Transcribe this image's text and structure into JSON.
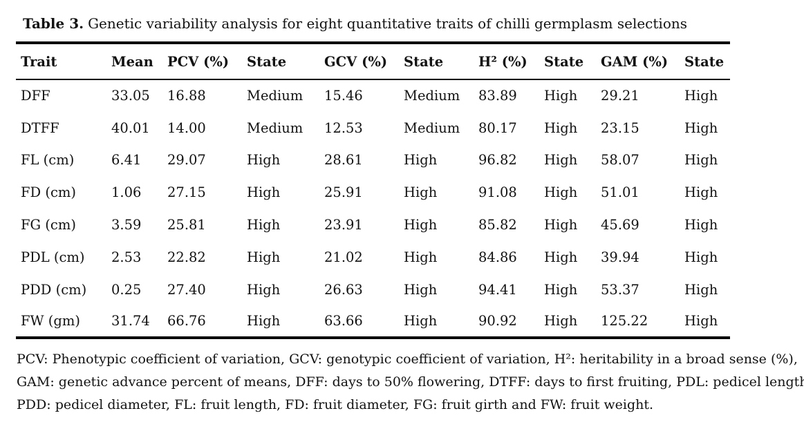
{
  "document": {
    "caption": {
      "label": "Table 3.",
      "text": "Genetic variability analysis for eight quantitative traits of chilli germplasm selections"
    },
    "table": {
      "columns": [
        "Trait",
        "Mean",
        "PCV (%)",
        "State",
        "GCV (%)",
        "State",
        "H² (%)",
        "State",
        "GAM (%)",
        "State"
      ],
      "rows": [
        [
          "DFF",
          "33.05",
          "16.88",
          "Medium",
          "15.46",
          "Medium",
          "83.89",
          "High",
          "29.21",
          "High"
        ],
        [
          "DTFF",
          "40.01",
          "14.00",
          "Medium",
          "12.53",
          "Medium",
          "80.17",
          "High",
          "23.15",
          "High"
        ],
        [
          "FL (cm)",
          "6.41",
          "29.07",
          "High",
          "28.61",
          "High",
          "96.82",
          "High",
          "58.07",
          "High"
        ],
        [
          "FD (cm)",
          "1.06",
          "27.15",
          "High",
          "25.91",
          "High",
          "91.08",
          "High",
          "51.01",
          "High"
        ],
        [
          "FG (cm)",
          "3.59",
          "25.81",
          "High",
          "23.91",
          "High",
          "85.82",
          "High",
          "45.69",
          "High"
        ],
        [
          "PDL (cm)",
          "2.53",
          "22.82",
          "High",
          "21.02",
          "High",
          "84.86",
          "High",
          "39.94",
          "High"
        ],
        [
          "PDD (cm)",
          "0.25",
          "27.40",
          "High",
          "26.63",
          "High",
          "94.41",
          "High",
          "53.37",
          "High"
        ],
        [
          "FW (gm)",
          "31.74",
          "66.76",
          "High",
          "63.66",
          "High",
          "90.92",
          "High",
          "125.22",
          "High"
        ]
      ]
    },
    "footnote": {
      "lines": [
        "PCV: Phenotypic coefficient of variation, GCV: genotypic coefficient of variation, H²: heritability in a broad sense (%),",
        "GAM: genetic advance percent of means, DFF: days to 50% flowering, DTFF: days to first fruiting, PDL: pedicel length,",
        "PDD: pedicel diameter, FL: fruit length, FD: fruit diameter, FG: fruit girth and FW: fruit weight."
      ]
    },
    "colors": {
      "text": "#121212",
      "background": "#ffffff",
      "rule": "#000000"
    }
  }
}
